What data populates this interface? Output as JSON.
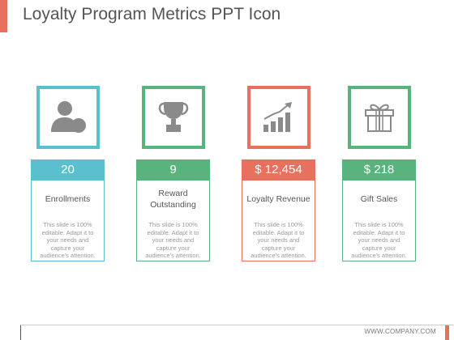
{
  "slide": {
    "title": "Loyalty Program Metrics PPT Icon",
    "footer_url": "WWW.COMPANY.COM"
  },
  "colors": {
    "teal": "#5bc0cd",
    "green": "#58b47c",
    "coral": "#e8705e",
    "icon_gray": "#8a8a8a"
  },
  "cards": [
    {
      "icon": "user-icon",
      "value": "20",
      "label": "Enrollments",
      "description": "This slide is 100% editable. Adapt it to your needs and capture your audience's attention."
    },
    {
      "icon": "trophy-icon",
      "value": "9",
      "label": "Reward Outstanding",
      "description": "This slide is 100% editable. Adapt it to your needs and capture your audience's attention."
    },
    {
      "icon": "growth-chart-icon",
      "value": "$ 12,454",
      "label": "Loyalty Revenue",
      "description": "This slide is 100% editable. Adapt it to your needs and capture your audience's attention."
    },
    {
      "icon": "gift-icon",
      "value": "$ 218",
      "label": "Gift Sales",
      "description": "This slide is 100% editable. Adapt it to your needs and capture your audience's attention."
    }
  ]
}
